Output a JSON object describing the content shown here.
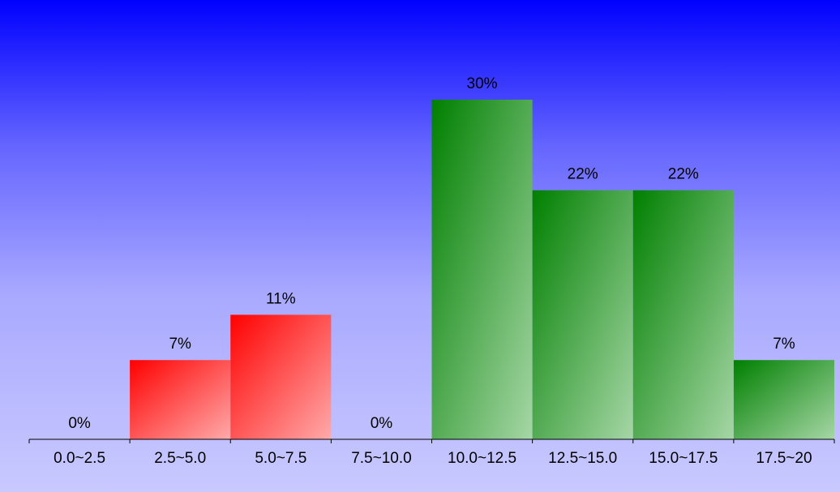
{
  "chart_data": {
    "type": "bar",
    "title": "",
    "xlabel": "",
    "ylabel": "",
    "categories": [
      "0.0~2.5",
      "2.5~5.0",
      "5.0~7.5",
      "7.5~10.0",
      "10.0~12.5",
      "12.5~15.0",
      "15.0~17.5",
      "17.5~20"
    ],
    "values": [
      0,
      7,
      11,
      0,
      30,
      22,
      22,
      7
    ],
    "data_labels": [
      "0%",
      "7%",
      "11%",
      "0%",
      "30%",
      "22%",
      "22%",
      "7%"
    ],
    "value_unit": "%",
    "bar_colors": [
      "#ff0000",
      "#ff0000",
      "#ff0000",
      "#ff0000",
      "#008000",
      "#008000",
      "#008000",
      "#008000"
    ],
    "ylim": [
      0,
      30
    ],
    "grid": false,
    "legend": "none"
  },
  "colors": {
    "background_top": "#0000ff",
    "background_bottom": "#c9c9ff",
    "red_bar": "#ff0000",
    "green_bar": "#008000",
    "axis": "#000000"
  }
}
